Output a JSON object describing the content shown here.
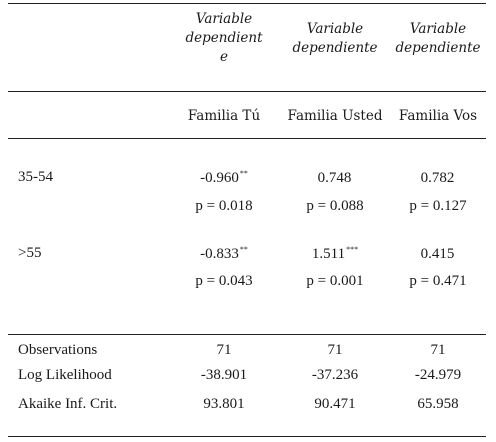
{
  "header": {
    "col1": [
      "Variable",
      "dependient",
      "e"
    ],
    "col2": [
      "Variable",
      "dependiente"
    ],
    "col3": [
      "Variable",
      "dependiente"
    ]
  },
  "columns": [
    "Familia Tú",
    "Familia Usted",
    "Familia Vos"
  ],
  "rows": [
    {
      "label": "35-54",
      "coef": [
        {
          "value": "-0.960",
          "stars": "**"
        },
        {
          "value": "0.748",
          "stars": ""
        },
        {
          "value": "0.782",
          "stars": ""
        }
      ],
      "p": [
        "p = 0.018",
        "p = 0.088",
        "p = 0.127"
      ]
    },
    {
      "label": ">55",
      "coef": [
        {
          "value": "-0.833",
          "stars": "**"
        },
        {
          "value": "1.511",
          "stars": "***"
        },
        {
          "value": "0.415",
          "stars": ""
        }
      ],
      "p": [
        "p = 0.043",
        "p = 0.001",
        "p = 0.471"
      ]
    }
  ],
  "stats": [
    {
      "label": "Observations",
      "values": [
        "71",
        "71",
        "71"
      ]
    },
    {
      "label": "Log Likelihood",
      "values": [
        "-38.901",
        "-37.236",
        "-24.979"
      ]
    },
    {
      "label": "Akaike Inf. Crit.",
      "values": [
        "93.801",
        "90.471",
        "65.958"
      ]
    }
  ]
}
